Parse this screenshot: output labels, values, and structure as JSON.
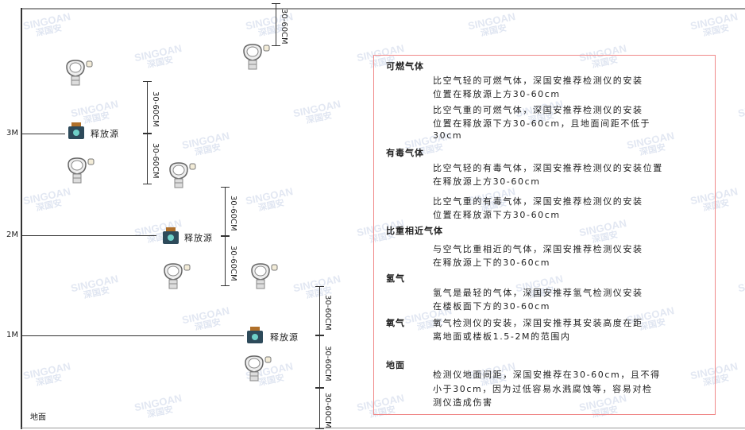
{
  "watermark": {
    "brand": "SINGOAN",
    "cn": "深国安"
  },
  "levels": [
    "3M",
    "2M",
    "1M"
  ],
  "ground": "地面",
  "source_label": "释放源",
  "dimension_label": "30-60CM",
  "panel": {
    "sections": [
      {
        "heading": "可燃气体",
        "paragraphs": [
          [
            "比空气轻的可燃气体，深国安推荐检测仪的安装",
            "位置在释放源上方30-60cm"
          ],
          [
            "比空气重的可燃气体，深国安推荐检测仪的安装",
            "位置在释放源下方30-60cm，且地面间距不低于",
            "30cm"
          ]
        ]
      },
      {
        "heading": "有毒气体",
        "paragraphs": [
          [
            "比空气轻的有毒气体，深国安推荐检测仪的安装位置",
            "在释放源上方30-60cm"
          ],
          [
            "比空气重的有毒气体，深国安推荐检测仪的安装",
            "位置在释放源下方30-60cm"
          ]
        ]
      },
      {
        "heading": "比重相近气体",
        "paragraphs": [
          [
            "与空气比重相近的气体，深国安推荐检测仪安装",
            "在释放源上下的30-60cm"
          ]
        ]
      },
      {
        "heading": "氢气",
        "paragraphs": [
          [
            "氢气是最轻的气体，深国安推荐氢气检测仪安装",
            "在楼板面下方的30-60cm"
          ]
        ]
      },
      {
        "heading": "氧气",
        "paragraphs": [
          [
            "氧气检测仪的安装，深国安推荐其安装高度在距",
            "离地面或楼板1.5-2M的范围内"
          ]
        ]
      },
      {
        "heading": "地面",
        "paragraphs": [
          [
            "检测仪地面间距，深国安推荐在30-60cm，且不得",
            "小于30cm，因为过低容易水溅腐蚀等，容易对检",
            "测仪造成伤害"
          ]
        ]
      }
    ]
  },
  "colors": {
    "panel_border": "#f08a8a",
    "line": "#333333",
    "source": "#2d4a5a"
  }
}
